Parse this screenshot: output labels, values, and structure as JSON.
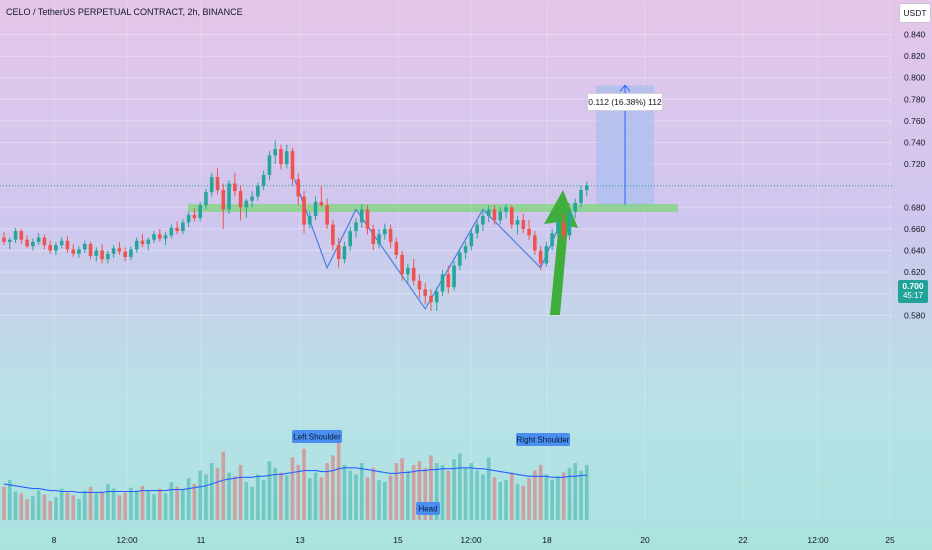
{
  "title": "CELO / TetherUS PERPETUAL CONTRACT, 2h, BINANCE",
  "currency": "USDT",
  "current_price": "0.700",
  "countdown": "45:17",
  "measure_label": "0.112 (16.38%) 112",
  "colors": {
    "up": "#26a69a",
    "down": "#ef5350",
    "ma": "#2962ff",
    "neckline": "#7fd67a",
    "target_box": "#a9bff0",
    "arrow": "#3fae3a",
    "label_bg": "#4a8ff0"
  },
  "chart_data": {
    "type": "candlestick",
    "title": "CELO / TetherUS PERPETUAL CONTRACT, 2h, BINANCE",
    "ylim": [
      0.571,
      0.846
    ],
    "yticks": [
      "0.840",
      "0.820",
      "0.800",
      "0.780",
      "0.760",
      "0.740",
      "0.720",
      "0.680",
      "0.660",
      "0.640",
      "0.620",
      "0.600",
      "0.580"
    ],
    "xticks": [
      "8",
      "12:00",
      "11",
      "13",
      "15",
      "12:00",
      "18",
      "20",
      "22",
      "12:00",
      "25"
    ],
    "pattern_labels": [
      "Left Shoulder",
      "Head",
      "Right Shoulder"
    ],
    "neckline": 0.681,
    "target": [
      0.681,
      0.793
    ],
    "candles": [
      [
        0.652,
        0.657,
        0.645,
        0.648
      ],
      [
        0.648,
        0.652,
        0.641,
        0.65
      ],
      [
        0.65,
        0.661,
        0.647,
        0.658
      ],
      [
        0.658,
        0.66,
        0.646,
        0.65
      ],
      [
        0.65,
        0.654,
        0.642,
        0.644
      ],
      [
        0.644,
        0.651,
        0.64,
        0.648
      ],
      [
        0.648,
        0.656,
        0.645,
        0.652
      ],
      [
        0.652,
        0.655,
        0.641,
        0.645
      ],
      [
        0.645,
        0.649,
        0.637,
        0.64
      ],
      [
        0.64,
        0.648,
        0.636,
        0.645
      ],
      [
        0.645,
        0.652,
        0.642,
        0.649
      ],
      [
        0.649,
        0.653,
        0.638,
        0.641
      ],
      [
        0.641,
        0.646,
        0.634,
        0.637
      ],
      [
        0.637,
        0.644,
        0.633,
        0.641
      ],
      [
        0.641,
        0.649,
        0.638,
        0.646
      ],
      [
        0.646,
        0.648,
        0.632,
        0.635
      ],
      [
        0.635,
        0.643,
        0.63,
        0.64
      ],
      [
        0.64,
        0.646,
        0.628,
        0.632
      ],
      [
        0.632,
        0.64,
        0.628,
        0.637
      ],
      [
        0.637,
        0.645,
        0.633,
        0.642
      ],
      [
        0.642,
        0.648,
        0.636,
        0.639
      ],
      [
        0.639,
        0.643,
        0.63,
        0.634
      ],
      [
        0.634,
        0.644,
        0.631,
        0.641
      ],
      [
        0.641,
        0.652,
        0.638,
        0.649
      ],
      [
        0.649,
        0.655,
        0.643,
        0.646
      ],
      [
        0.646,
        0.652,
        0.64,
        0.65
      ],
      [
        0.65,
        0.658,
        0.647,
        0.655
      ],
      [
        0.655,
        0.66,
        0.648,
        0.651
      ],
      [
        0.651,
        0.657,
        0.645,
        0.654
      ],
      [
        0.654,
        0.664,
        0.651,
        0.661
      ],
      [
        0.661,
        0.667,
        0.655,
        0.658
      ],
      [
        0.658,
        0.669,
        0.655,
        0.666
      ],
      [
        0.666,
        0.676,
        0.662,
        0.673
      ],
      [
        0.673,
        0.679,
        0.667,
        0.67
      ],
      [
        0.67,
        0.685,
        0.667,
        0.682
      ],
      [
        0.682,
        0.697,
        0.678,
        0.694
      ],
      [
        0.694,
        0.712,
        0.69,
        0.708
      ],
      [
        0.708,
        0.716,
        0.692,
        0.696
      ],
      [
        0.696,
        0.702,
        0.66,
        0.678
      ],
      [
        0.678,
        0.705,
        0.674,
        0.702
      ],
      [
        0.702,
        0.712,
        0.69,
        0.695
      ],
      [
        0.695,
        0.7,
        0.668,
        0.68
      ],
      [
        0.68,
        0.688,
        0.67,
        0.686
      ],
      [
        0.686,
        0.695,
        0.68,
        0.69
      ],
      [
        0.69,
        0.703,
        0.686,
        0.7
      ],
      [
        0.7,
        0.714,
        0.696,
        0.71
      ],
      [
        0.71,
        0.732,
        0.705,
        0.728
      ],
      [
        0.728,
        0.742,
        0.72,
        0.734
      ],
      [
        0.734,
        0.738,
        0.715,
        0.72
      ],
      [
        0.72,
        0.738,
        0.716,
        0.732
      ],
      [
        0.732,
        0.735,
        0.7,
        0.706
      ],
      [
        0.706,
        0.712,
        0.682,
        0.69
      ],
      [
        0.69,
        0.695,
        0.656,
        0.664
      ],
      [
        0.664,
        0.676,
        0.66,
        0.672
      ],
      [
        0.672,
        0.69,
        0.668,
        0.685
      ],
      [
        0.685,
        0.7,
        0.68,
        0.682
      ],
      [
        0.682,
        0.688,
        0.66,
        0.664
      ],
      [
        0.664,
        0.668,
        0.64,
        0.645
      ],
      [
        0.645,
        0.652,
        0.624,
        0.632
      ],
      [
        0.632,
        0.648,
        0.628,
        0.644
      ],
      [
        0.644,
        0.662,
        0.64,
        0.658
      ],
      [
        0.658,
        0.67,
        0.652,
        0.666
      ],
      [
        0.666,
        0.683,
        0.661,
        0.678
      ],
      [
        0.678,
        0.682,
        0.655,
        0.66
      ],
      [
        0.66,
        0.664,
        0.64,
        0.646
      ],
      [
        0.646,
        0.66,
        0.642,
        0.655
      ],
      [
        0.655,
        0.665,
        0.65,
        0.66
      ],
      [
        0.66,
        0.664,
        0.642,
        0.648
      ],
      [
        0.648,
        0.652,
        0.632,
        0.636
      ],
      [
        0.636,
        0.64,
        0.612,
        0.618
      ],
      [
        0.618,
        0.628,
        0.61,
        0.624
      ],
      [
        0.624,
        0.632,
        0.608,
        0.612
      ],
      [
        0.612,
        0.618,
        0.596,
        0.604
      ],
      [
        0.604,
        0.61,
        0.59,
        0.598
      ],
      [
        0.598,
        0.604,
        0.584,
        0.592
      ],
      [
        0.592,
        0.606,
        0.584,
        0.602
      ],
      [
        0.602,
        0.622,
        0.598,
        0.618
      ],
      [
        0.618,
        0.626,
        0.6,
        0.606
      ],
      [
        0.606,
        0.63,
        0.603,
        0.626
      ],
      [
        0.626,
        0.642,
        0.622,
        0.638
      ],
      [
        0.638,
        0.648,
        0.632,
        0.644
      ],
      [
        0.644,
        0.66,
        0.64,
        0.656
      ],
      [
        0.656,
        0.668,
        0.651,
        0.664
      ],
      [
        0.664,
        0.676,
        0.658,
        0.672
      ],
      [
        0.672,
        0.682,
        0.666,
        0.678
      ],
      [
        0.678,
        0.682,
        0.664,
        0.668
      ],
      [
        0.668,
        0.68,
        0.664,
        0.676
      ],
      [
        0.676,
        0.683,
        0.67,
        0.68
      ],
      [
        0.68,
        0.682,
        0.66,
        0.664
      ],
      [
        0.664,
        0.672,
        0.655,
        0.668
      ],
      [
        0.668,
        0.674,
        0.656,
        0.66
      ],
      [
        0.66,
        0.668,
        0.65,
        0.654
      ],
      [
        0.654,
        0.658,
        0.636,
        0.64
      ],
      [
        0.64,
        0.644,
        0.622,
        0.628
      ],
      [
        0.628,
        0.648,
        0.625,
        0.644
      ],
      [
        0.644,
        0.66,
        0.64,
        0.656
      ],
      [
        0.656,
        0.67,
        0.652,
        0.666
      ],
      [
        0.666,
        0.674,
        0.65,
        0.654
      ],
      [
        0.654,
        0.68,
        0.65,
        0.676
      ],
      [
        0.676,
        0.688,
        0.67,
        0.684
      ],
      [
        0.684,
        0.7,
        0.68,
        0.696
      ],
      [
        0.696,
        0.704,
        0.69,
        0.7
      ]
    ],
    "volume": [
      0.35,
      0.42,
      0.3,
      0.28,
      0.22,
      0.25,
      0.31,
      0.27,
      0.2,
      0.24,
      0.33,
      0.29,
      0.26,
      0.22,
      0.31,
      0.35,
      0.28,
      0.3,
      0.38,
      0.33,
      0.26,
      0.29,
      0.34,
      0.31,
      0.36,
      0.3,
      0.27,
      0.33,
      0.28,
      0.4,
      0.35,
      0.32,
      0.44,
      0.38,
      0.52,
      0.48,
      0.6,
      0.55,
      0.72,
      0.5,
      0.46,
      0.58,
      0.4,
      0.35,
      0.48,
      0.42,
      0.62,
      0.55,
      0.5,
      0.47,
      0.66,
      0.58,
      0.75,
      0.44,
      0.5,
      0.45,
      0.6,
      0.68,
      0.95,
      0.58,
      0.52,
      0.48,
      0.6,
      0.45,
      0.55,
      0.42,
      0.4,
      0.47,
      0.6,
      0.65,
      0.52,
      0.58,
      0.62,
      0.55,
      0.68,
      0.6,
      0.58,
      0.52,
      0.64,
      0.7,
      0.55,
      0.6,
      0.52,
      0.48,
      0.66,
      0.45,
      0.4,
      0.42,
      0.5,
      0.38,
      0.36,
      0.44,
      0.52,
      0.58,
      0.48,
      0.42,
      0.46,
      0.5,
      0.55,
      0.6,
      0.52,
      0.58
    ],
    "ma": [
      0.38,
      0.37,
      0.36,
      0.35,
      0.34,
      0.33,
      0.33,
      0.32,
      0.31,
      0.31,
      0.3,
      0.3,
      0.3,
      0.29,
      0.29,
      0.29,
      0.29,
      0.29,
      0.3,
      0.3,
      0.3,
      0.3,
      0.3,
      0.3,
      0.31,
      0.31,
      0.31,
      0.31,
      0.31,
      0.32,
      0.32,
      0.32,
      0.33,
      0.34,
      0.35,
      0.36,
      0.38,
      0.4,
      0.42,
      0.43,
      0.44,
      0.45,
      0.45,
      0.45,
      0.46,
      0.46,
      0.47,
      0.48,
      0.48,
      0.49,
      0.5,
      0.51,
      0.52,
      0.52,
      0.52,
      0.51,
      0.51,
      0.52,
      0.54,
      0.55,
      0.55,
      0.55,
      0.54,
      0.53,
      0.52,
      0.51,
      0.5,
      0.49,
      0.49,
      0.5,
      0.5,
      0.51,
      0.52,
      0.52,
      0.53,
      0.53,
      0.54,
      0.54,
      0.54,
      0.55,
      0.55,
      0.55,
      0.54,
      0.54,
      0.53,
      0.52,
      0.51,
      0.5,
      0.49,
      0.48,
      0.47,
      0.46,
      0.46,
      0.46,
      0.46,
      0.45,
      0.45,
      0.45,
      0.46,
      0.46,
      0.47,
      0.47
    ]
  }
}
